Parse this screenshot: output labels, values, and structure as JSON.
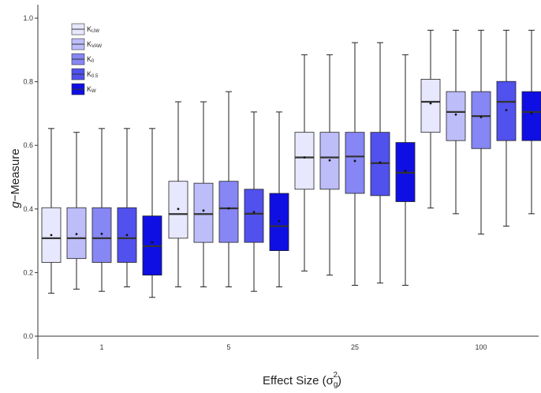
{
  "chart_data": {
    "type": "boxplot",
    "title": "",
    "xlabel": "Effect Size",
    "xlabel_symbol": "σ",
    "xlabel_sub": "g",
    "xlabel_sup": "2",
    "ylabel_italic": "g",
    "ylabel_rest": "−Measure",
    "ylim": [
      0,
      1.05
    ],
    "yticks": [
      "0.0",
      "0.2",
      "0.4",
      "0.6",
      "0.8",
      "1.0"
    ],
    "ytick_values": [
      0,
      0.2,
      0.4,
      0.6,
      0.8,
      1.0
    ],
    "grid": false,
    "legend_position": "top-left",
    "categories": [
      "1",
      "5",
      "25",
      "100"
    ],
    "series": [
      {
        "name": "K_UW",
        "label_main": "K",
        "label_sub": "UW",
        "color": "#e7e7fd",
        "boxes": [
          {
            "min": 0.135,
            "q1": 0.232,
            "median": 0.308,
            "q3": 0.404,
            "max": 0.653,
            "mean": 0.318
          },
          {
            "min": 0.155,
            "q1": 0.308,
            "median": 0.384,
            "q3": 0.487,
            "max": 0.737,
            "mean": 0.4
          },
          {
            "min": 0.205,
            "q1": 0.462,
            "median": 0.562,
            "q3": 0.641,
            "max": 0.885,
            "mean": 0.562
          },
          {
            "min": 0.403,
            "q1": 0.641,
            "median": 0.737,
            "q3": 0.808,
            "max": 0.962,
            "mean": 0.732
          }
        ]
      },
      {
        "name": "K_VAW",
        "label_main": "K",
        "label_sub": "VAW",
        "color": "#bdbdfa",
        "boxes": [
          {
            "min": 0.148,
            "q1": 0.244,
            "median": 0.308,
            "q3": 0.404,
            "max": 0.641,
            "mean": 0.321
          },
          {
            "min": 0.155,
            "q1": 0.295,
            "median": 0.384,
            "q3": 0.481,
            "max": 0.737,
            "mean": 0.395
          },
          {
            "min": 0.192,
            "q1": 0.462,
            "median": 0.562,
            "q3": 0.641,
            "max": 0.885,
            "mean": 0.553
          },
          {
            "min": 0.385,
            "q1": 0.615,
            "median": 0.705,
            "q3": 0.769,
            "max": 0.962,
            "mean": 0.697
          }
        ]
      },
      {
        "name": "K_0",
        "label_main": "K",
        "label_sub": "0",
        "color": "#8686f4",
        "boxes": [
          {
            "min": 0.141,
            "q1": 0.232,
            "median": 0.308,
            "q3": 0.404,
            "max": 0.653,
            "mean": 0.322
          },
          {
            "min": 0.155,
            "q1": 0.295,
            "median": 0.402,
            "q3": 0.487,
            "max": 0.769,
            "mean": 0.402
          },
          {
            "min": 0.16,
            "q1": 0.449,
            "median": 0.565,
            "q3": 0.641,
            "max": 0.923,
            "mean": 0.551
          },
          {
            "min": 0.321,
            "q1": 0.59,
            "median": 0.692,
            "q3": 0.769,
            "max": 0.962,
            "mean": 0.689
          }
        ]
      },
      {
        "name": "K_0.5",
        "label_main": "K",
        "label_sub": "0.5",
        "color": "#5151ee",
        "boxes": [
          {
            "min": 0.155,
            "q1": 0.232,
            "median": 0.308,
            "q3": 0.404,
            "max": 0.653,
            "mean": 0.318
          },
          {
            "min": 0.141,
            "q1": 0.295,
            "median": 0.385,
            "q3": 0.462,
            "max": 0.705,
            "mean": 0.39
          },
          {
            "min": 0.167,
            "q1": 0.442,
            "median": 0.544,
            "q3": 0.641,
            "max": 0.923,
            "mean": 0.546
          },
          {
            "min": 0.346,
            "q1": 0.615,
            "median": 0.737,
            "q3": 0.801,
            "max": 0.962,
            "mean": 0.711
          }
        ]
      },
      {
        "name": "K_W",
        "label_main": "K",
        "label_sub": "W",
        "color": "#0f0fe3",
        "boxes": [
          {
            "min": 0.122,
            "q1": 0.192,
            "median": 0.283,
            "q3": 0.378,
            "max": 0.653,
            "mean": 0.295
          },
          {
            "min": 0.155,
            "q1": 0.269,
            "median": 0.346,
            "q3": 0.449,
            "max": 0.705,
            "mean": 0.362
          },
          {
            "min": 0.16,
            "q1": 0.423,
            "median": 0.514,
            "q3": 0.609,
            "max": 0.885,
            "mean": 0.52
          },
          {
            "min": 0.385,
            "q1": 0.615,
            "median": 0.705,
            "q3": 0.769,
            "max": 0.962,
            "mean": 0.701
          }
        ]
      }
    ]
  }
}
